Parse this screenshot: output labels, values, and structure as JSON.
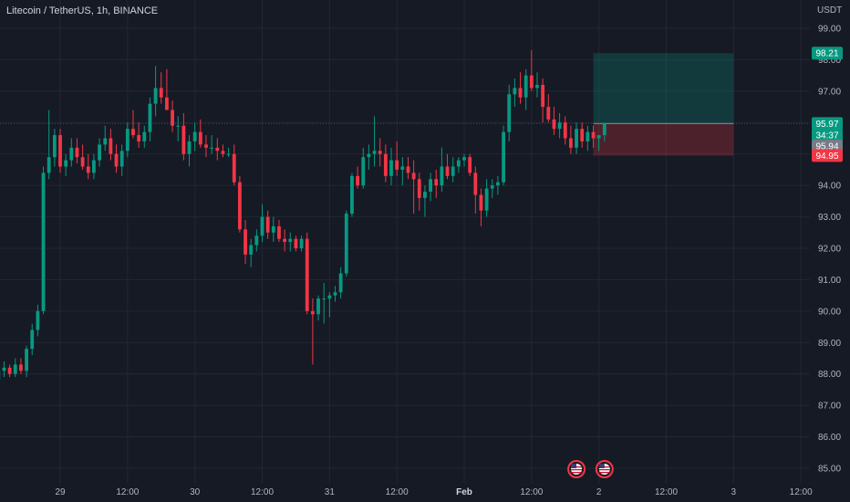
{
  "header": {
    "title": "Litecoin / TetherUS, 1h, BINANCE",
    "currency": "USDT"
  },
  "chart_data": {
    "type": "candlestick",
    "title": "Litecoin / TetherUS, 1h, BINANCE",
    "ylabel": "USDT",
    "ylim": [
      84.8,
      99.6
    ],
    "y_ticks": [
      85,
      86,
      87,
      88,
      89,
      90,
      91,
      92,
      93,
      94,
      95,
      96,
      97,
      98,
      99
    ],
    "x_ticks": [
      "29",
      "12:00",
      "30",
      "12:00",
      "31",
      "12:00",
      "Feb",
      "12:00",
      "2",
      "12:00",
      "3",
      "12:00"
    ],
    "x_tick_hours": [
      0,
      12,
      24,
      36,
      48,
      60,
      72,
      84,
      96,
      108,
      120,
      132
    ],
    "x_range_hours": [
      -18.5,
      137.5
    ],
    "grid": true,
    "candles": [
      [
        88.5,
        88.6,
        88.2,
        88.4
      ],
      [
        88.4,
        88.8,
        88.2,
        88.5
      ],
      [
        88.5,
        88.7,
        88.0,
        88.1
      ],
      [
        88.1,
        88.5,
        87.6,
        87.7
      ],
      [
        87.7,
        88.0,
        87.1,
        87.4
      ],
      [
        87.4,
        87.6,
        86.9,
        87.2
      ],
      [
        87.2,
        87.9,
        87.0,
        87.8
      ],
      [
        87.8,
        88.3,
        87.6,
        88.1
      ],
      [
        88.1,
        88.4,
        87.9,
        88.2
      ],
      [
        88.2,
        88.3,
        87.9,
        88.0
      ],
      [
        88.0,
        88.5,
        87.9,
        88.3
      ],
      [
        88.3,
        88.5,
        88.0,
        88.1
      ],
      [
        88.1,
        88.9,
        87.9,
        88.8
      ],
      [
        88.8,
        89.6,
        88.6,
        89.4
      ],
      [
        89.4,
        90.2,
        89.2,
        90.0
      ],
      [
        90.0,
        94.6,
        89.9,
        94.4
      ],
      [
        94.4,
        96.4,
        94.2,
        94.9
      ],
      [
        94.9,
        95.8,
        94.6,
        95.6
      ],
      [
        95.6,
        95.8,
        94.4,
        94.6
      ],
      [
        94.6,
        95.0,
        94.3,
        94.8
      ],
      [
        94.8,
        95.5,
        94.6,
        95.2
      ],
      [
        95.2,
        95.5,
        94.7,
        94.9
      ],
      [
        94.9,
        95.3,
        94.5,
        94.6
      ],
      [
        94.6,
        95.0,
        94.2,
        94.4
      ],
      [
        94.4,
        95.0,
        94.2,
        94.8
      ],
      [
        94.8,
        95.5,
        94.6,
        95.3
      ],
      [
        95.3,
        95.9,
        95.1,
        95.5
      ],
      [
        95.5,
        95.8,
        94.8,
        95.0
      ],
      [
        95.0,
        95.3,
        94.4,
        94.6
      ],
      [
        94.6,
        95.3,
        94.3,
        95.1
      ],
      [
        95.1,
        96.0,
        94.9,
        95.8
      ],
      [
        95.8,
        96.4,
        95.5,
        95.6
      ],
      [
        95.6,
        96.0,
        95.2,
        95.4
      ],
      [
        95.4,
        95.9,
        95.2,
        95.7
      ],
      [
        95.7,
        96.8,
        95.4,
        96.6
      ],
      [
        96.6,
        97.8,
        96.2,
        97.1
      ],
      [
        97.1,
        97.6,
        96.6,
        96.8
      ],
      [
        96.8,
        97.7,
        96.4,
        96.4
      ],
      [
        96.4,
        96.7,
        95.7,
        95.9
      ],
      [
        95.9,
        96.2,
        95.4,
        95.9
      ],
      [
        95.9,
        96.3,
        94.8,
        95.0
      ],
      [
        95.0,
        95.6,
        94.6,
        95.4
      ],
      [
        95.4,
        96.0,
        95.1,
        95.7
      ],
      [
        95.7,
        96.1,
        95.2,
        95.3
      ],
      [
        95.3,
        95.6,
        94.9,
        95.2
      ],
      [
        95.2,
        95.6,
        95.0,
        95.2
      ],
      [
        95.2,
        95.5,
        94.8,
        95.1
      ],
      [
        95.1,
        95.3,
        94.9,
        95.0
      ],
      [
        95.0,
        95.2,
        94.9,
        95.0
      ],
      [
        95.0,
        95.3,
        94.0,
        94.1
      ],
      [
        94.1,
        94.3,
        92.5,
        92.6
      ],
      [
        92.6,
        92.9,
        91.5,
        91.8
      ],
      [
        91.8,
        92.3,
        91.4,
        92.1
      ],
      [
        92.1,
        92.6,
        91.9,
        92.4
      ],
      [
        92.4,
        93.4,
        92.2,
        93.0
      ],
      [
        93.0,
        93.2,
        92.3,
        92.5
      ],
      [
        92.5,
        93.0,
        92.2,
        92.7
      ],
      [
        92.7,
        92.9,
        92.2,
        92.3
      ],
      [
        92.3,
        92.6,
        91.9,
        92.2
      ],
      [
        92.2,
        92.5,
        91.9,
        92.3
      ],
      [
        92.3,
        92.4,
        91.9,
        92.0
      ],
      [
        92.0,
        92.4,
        91.9,
        92.3
      ],
      [
        92.3,
        92.5,
        89.9,
        90.0
      ],
      [
        90.0,
        90.4,
        88.3,
        89.9
      ],
      [
        89.9,
        90.5,
        89.7,
        90.4
      ],
      [
        90.4,
        90.9,
        89.6,
        90.4
      ],
      [
        90.4,
        90.6,
        89.8,
        90.5
      ],
      [
        90.5,
        90.8,
        90.3,
        90.6
      ],
      [
        90.6,
        91.4,
        90.4,
        91.2
      ],
      [
        91.2,
        93.2,
        91.1,
        93.1
      ],
      [
        93.1,
        94.4,
        93.0,
        94.3
      ],
      [
        94.3,
        94.6,
        93.9,
        94.0
      ],
      [
        94.0,
        95.2,
        93.9,
        94.9
      ],
      [
        94.9,
        95.3,
        94.5,
        95.0
      ],
      [
        95.0,
        96.2,
        94.6,
        95.1
      ],
      [
        95.1,
        95.5,
        94.6,
        95.0
      ],
      [
        95.0,
        95.3,
        94.1,
        94.3
      ],
      [
        94.3,
        95.2,
        94.0,
        94.8
      ],
      [
        94.8,
        95.4,
        94.3,
        94.5
      ],
      [
        94.5,
        94.9,
        94.0,
        94.6
      ],
      [
        94.6,
        94.9,
        94.2,
        94.4
      ],
      [
        94.4,
        94.8,
        93.1,
        94.2
      ],
      [
        94.2,
        94.4,
        93.2,
        93.6
      ],
      [
        93.6,
        94.0,
        93.0,
        93.8
      ],
      [
        93.8,
        94.4,
        93.5,
        94.2
      ],
      [
        94.2,
        94.5,
        93.6,
        94.0
      ],
      [
        94.0,
        95.2,
        93.8,
        94.6
      ],
      [
        94.6,
        95.0,
        94.2,
        94.3
      ],
      [
        94.3,
        94.9,
        94.1,
        94.6
      ],
      [
        94.6,
        94.9,
        94.4,
        94.8
      ],
      [
        94.8,
        95.0,
        94.6,
        94.9
      ],
      [
        94.9,
        95.0,
        94.3,
        94.4
      ],
      [
        94.4,
        94.6,
        93.1,
        93.7
      ],
      [
        93.7,
        93.9,
        92.7,
        93.2
      ],
      [
        93.2,
        94.2,
        93.0,
        93.9
      ],
      [
        93.9,
        94.2,
        93.6,
        94.0
      ],
      [
        94.0,
        94.3,
        93.7,
        94.1
      ],
      [
        94.1,
        95.9,
        94.0,
        95.7
      ],
      [
        95.7,
        97.2,
        95.4,
        96.9
      ],
      [
        96.9,
        97.4,
        96.5,
        97.1
      ],
      [
        97.1,
        97.6,
        96.6,
        96.8
      ],
      [
        96.8,
        97.7,
        96.4,
        97.5
      ],
      [
        97.5,
        98.3,
        97.0,
        97.1
      ],
      [
        97.1,
        97.6,
        96.8,
        97.2
      ],
      [
        97.2,
        97.4,
        96.0,
        96.5
      ],
      [
        96.5,
        96.9,
        96.0,
        96.1
      ],
      [
        96.1,
        96.5,
        95.6,
        95.8
      ],
      [
        95.8,
        96.3,
        95.5,
        96.0
      ],
      [
        96.0,
        96.2,
        95.3,
        95.5
      ],
      [
        95.5,
        95.9,
        95.0,
        95.2
      ],
      [
        95.2,
        96.0,
        95.0,
        95.8
      ],
      [
        95.8,
        96.0,
        95.2,
        95.4
      ],
      [
        95.4,
        95.9,
        95.1,
        95.7
      ],
      [
        95.7,
        95.9,
        95.2,
        95.5
      ],
      [
        95.5,
        95.6,
        95.1,
        95.6
      ],
      [
        95.6,
        96.0,
        95.4,
        95.97
      ]
    ],
    "start_hour": -18,
    "position": {
      "entry": 95.97,
      "target": 98.21,
      "stop": 94.95,
      "start_hour": 95,
      "end_hour": 120
    },
    "price_badges": [
      {
        "value": "98.21",
        "price": 98.21,
        "color": "#089981"
      },
      {
        "value": "95.97",
        "price": 95.97,
        "color": "#089981"
      },
      {
        "value": "34:37",
        "price": 95.6,
        "color": "#089981"
      },
      {
        "value": "95.94",
        "price": 95.25,
        "color": "#787b86"
      },
      {
        "value": "94.95",
        "price": 94.95,
        "color": "#f23645"
      }
    ],
    "colors": {
      "up": "#089981",
      "down": "#f23645",
      "background": "#161a25",
      "grid": "#232733",
      "target_zone": "rgba(8,153,129,0.25)",
      "stop_zone": "rgba(242,54,69,0.25)"
    },
    "event_markers": [
      {
        "hour": 92,
        "icon": "us-flag-icon"
      },
      {
        "hour": 97,
        "icon": "us-flag-icon"
      }
    ]
  }
}
